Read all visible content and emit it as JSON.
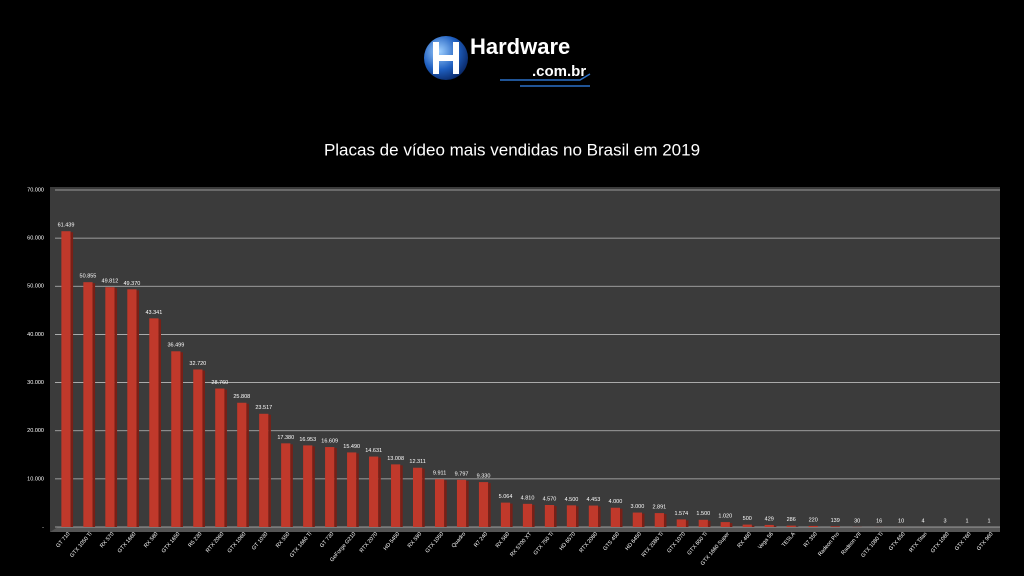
{
  "header": {
    "brand": "Hardware",
    "domain": ".com.br"
  },
  "chart_data": {
    "type": "bar",
    "title": "Placas de vídeo mais vendidas no Brasil em 2019",
    "categories": [
      "GT 710",
      "GTX 1050 Ti",
      "RX 570",
      "GTX 1660",
      "RX 580",
      "GTX 1650",
      "R5 230",
      "RTX 2060",
      "GTX 1060",
      "GT 1030",
      "RX 550",
      "GTX 1660 Ti",
      "GT 730",
      "GeForge G210",
      "RTX 2070",
      "HD 5450",
      "RX 590",
      "GTX 1050",
      "Quadro",
      "R7 240",
      "RX 560",
      "RX 5700 XT",
      "GTX 750 Ti",
      "HD 6570",
      "RTX 2080",
      "GTS 450",
      "HD 6450",
      "RTX 2080 Ti",
      "GTX 1070",
      "GTX 650 Ti",
      "GTX 1660 Super",
      "RX 460",
      "Vega 56",
      "TESLA",
      "R7 350",
      "Radeon Pro",
      "Radeon VII",
      "GTX 1080 Ti",
      "GTX 650",
      "RTX Titan",
      "GTX 1080",
      "GTX 760",
      "GTX 960"
    ],
    "values": [
      61439,
      50855,
      49812,
      49370,
      43341,
      36499,
      32720,
      28760,
      25808,
      23517,
      17380,
      16953,
      16609,
      15490,
      14631,
      13008,
      12311,
      9911,
      9797,
      9330,
      5064,
      4810,
      4570,
      4500,
      4453,
      4000,
      3000,
      2891,
      1574,
      1500,
      1020,
      500,
      429,
      286,
      220,
      139,
      30,
      16,
      10,
      4,
      3,
      1,
      1
    ],
    "value_labels": [
      "61.439",
      "50.855",
      "49.812",
      "49.370",
      "43.341",
      "36.499",
      "32.720",
      "28.760",
      "25.808",
      "23.517",
      "17.380",
      "16.953",
      "16.609",
      "15.490",
      "14.631",
      "13.008",
      "12.311",
      "9.911",
      "9.797",
      "9.330",
      "5.064",
      "4.810",
      "4.570",
      "4.500",
      "4.453",
      "4.000",
      "3.000",
      "2.891",
      "1.574",
      "1.500",
      "1.020",
      "500",
      "429",
      "286",
      "220",
      "139",
      "30",
      "16",
      "10",
      "4",
      "3",
      "1",
      "1"
    ],
    "color": "#c0392b",
    "ylim": [
      0,
      70000
    ],
    "yticks": [
      {
        "value": 0,
        "label": "-"
      },
      {
        "value": 10000,
        "label": "10.000"
      },
      {
        "value": 20000,
        "label": "20.000"
      },
      {
        "value": 30000,
        "label": "30.000"
      },
      {
        "value": 40000,
        "label": "40.000"
      },
      {
        "value": 50000,
        "label": "50.000"
      },
      {
        "value": 60000,
        "label": "60.000"
      },
      {
        "value": 70000,
        "label": "70.000"
      }
    ],
    "grid": true
  }
}
